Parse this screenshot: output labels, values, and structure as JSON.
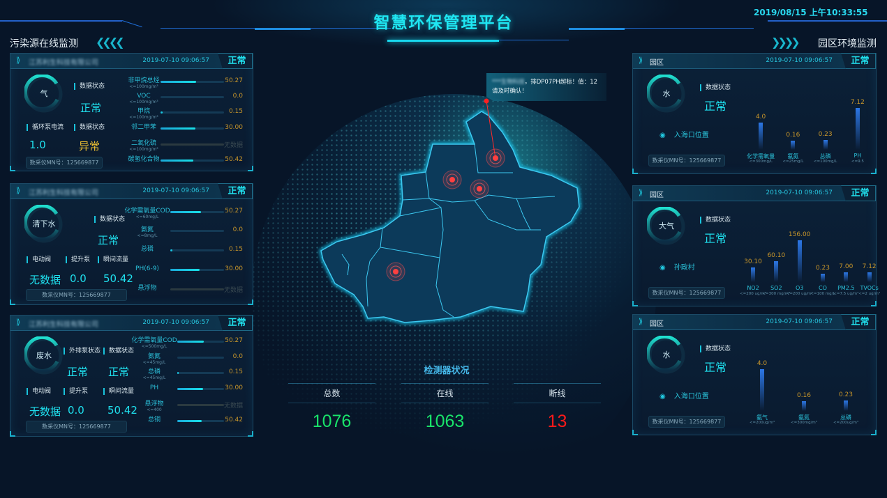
{
  "header": {
    "title": "智慧环保管理平台",
    "datetime": "2019/08/15 上午10:33:55"
  },
  "left_section": {
    "title": "污染源在线监测"
  },
  "right_section": {
    "title": "园区环境监测"
  },
  "colors": {
    "accent": "#1fe6f2",
    "value": "#c8962a",
    "warning": "#f0c232",
    "ok_count": "#19e36a",
    "offline_count": "#ff1a1a"
  },
  "left_panels": [
    {
      "company": "江苏利生科技有限公司",
      "time": "2019-07-10  09:06:57",
      "status": "正常",
      "gauge_label": "气",
      "kv": [
        {
          "label": "数据状态",
          "value": "正常"
        },
        {
          "label": "循环泵电流",
          "value": "1.0"
        },
        {
          "label": "数据状态",
          "value": "异常",
          "tone": "warning"
        }
      ],
      "mn": "数采仪MN号：125669877",
      "metrics": [
        {
          "name": "非甲烷总烃",
          "limit": "<=100mg/m³",
          "value": "50.27",
          "fill": 0.56
        },
        {
          "name": "VOC",
          "limit": "<=100mg/m³",
          "value": "0.0",
          "fill": 0
        },
        {
          "name": "甲烷",
          "limit": "<=100mg/m³",
          "value": "0.15",
          "fill": 0.03
        },
        {
          "name": "邻二甲苯",
          "limit": "",
          "value": "30.00",
          "fill": 0.55
        },
        {
          "name": "二氧化硫",
          "limit": "<=100mg/m³",
          "value": "无数据",
          "fill": null
        },
        {
          "name": "碳氢化合物",
          "limit": "",
          "value": "50.42",
          "fill": 0.52
        }
      ]
    },
    {
      "company": "江苏利生科技有限公司",
      "time": "2019-07-10  09:06:57",
      "status": "正常",
      "gauge_label": "清下水",
      "kv": [
        {
          "label": "数据状态",
          "value": "正常"
        },
        {
          "label": "电动阀",
          "value": "无数据"
        },
        {
          "label": "提升泵",
          "value": "0.0"
        },
        {
          "label": "瞬间流量",
          "value": "50.42"
        }
      ],
      "mn": "数采仪MN号：125669877",
      "metrics": [
        {
          "name": "化学需氧量COD",
          "limit": "<=60mg/L",
          "value": "50.27",
          "fill": 0.57
        },
        {
          "name": "氨氮",
          "limit": "<=8mg/L",
          "value": "0.0",
          "fill": 0
        },
        {
          "name": "总磷",
          "limit": "",
          "value": "0.15",
          "fill": 0.04
        },
        {
          "name": "PH(6-9)",
          "limit": "",
          "value": "30.00",
          "fill": 0.55
        },
        {
          "name": "悬浮物",
          "limit": "",
          "value": "无数据",
          "fill": null
        }
      ]
    },
    {
      "company": "江苏利生科技有限公司",
      "time": "2019-07-10  09:06:57",
      "status": "正常",
      "gauge_label": "废水",
      "kv": [
        {
          "label": "外排泵状态",
          "value": "正常"
        },
        {
          "label": "数据状态",
          "value": "正常"
        },
        {
          "label": "电动阀",
          "value": "无数据"
        },
        {
          "label": "提升泵",
          "value": "0.0"
        },
        {
          "label": "瞬间流量",
          "value": "50.42"
        }
      ],
      "mn": "数采仪MN号：125669877",
      "metrics": [
        {
          "name": "化学需氧量COD",
          "limit": "<=500mg/L",
          "value": "50.27",
          "fill": 0.57
        },
        {
          "name": "氨氮",
          "limit": "<=45mg/L",
          "value": "0.0",
          "fill": 0
        },
        {
          "name": "总磷",
          "limit": "<=45mg/L",
          "value": "0.15",
          "fill": 0.03
        },
        {
          "name": "PH",
          "limit": "",
          "value": "30.00",
          "fill": 0.55
        },
        {
          "name": "悬浮物",
          "limit": "<=400",
          "value": "无数据",
          "fill": null
        },
        {
          "name": "总铜",
          "limit": "",
          "value": "50.42",
          "fill": 0.52
        }
      ]
    }
  ],
  "right_panels": [
    {
      "title": "园区",
      "time": "2019-07-10  09:06:57",
      "status": "正常",
      "gauge_label": "水",
      "kv_label": "数据状态",
      "kv_value": "正常",
      "location": "入海口位置",
      "mn": "数采仪MN号：125669877",
      "bars": [
        {
          "name": "化学需氧量",
          "limit": "<=300mg/L",
          "value": 4.0,
          "label": "4.0"
        },
        {
          "name": "氨氮",
          "limit": "<=25mg/L",
          "value": 0.16,
          "label": "0.16"
        },
        {
          "name": "总磷",
          "limit": "<=100mg/L",
          "value": 0.23,
          "label": "0.23"
        },
        {
          "name": "PH",
          "limit": "<=9.5",
          "value": 7.12,
          "label": "7.12"
        }
      ]
    },
    {
      "title": "园区",
      "time": "2019-07-10  09:06:57",
      "status": "正常",
      "gauge_label": "大气",
      "kv_label": "数据状态",
      "kv_value": "正常",
      "location": "孙政村",
      "mn": "数采仪MN号：125669877",
      "bars": [
        {
          "name": "NO2",
          "limit": "<=200 ug/m³",
          "value": 30.1,
          "label": "30.10"
        },
        {
          "name": "SO2",
          "limit": "<=300 mg/m³",
          "value": 60.1,
          "label": "60.10"
        },
        {
          "name": "O3",
          "limit": "<=200 ug/m³",
          "value": 156.0,
          "label": "156.00"
        },
        {
          "name": "CO",
          "limit": "<=100 mg/L",
          "value": 0.23,
          "label": "0.23"
        },
        {
          "name": "PM2.5",
          "limit": "<=7.5 ug/m³",
          "value": 7.0,
          "label": "7.00"
        },
        {
          "name": "TVOCs",
          "limit": "<=2 ug/m³",
          "value": 7.12,
          "label": "7.12"
        }
      ]
    },
    {
      "title": "园区",
      "time": "2019-07-10  09:06:57",
      "status": "正常",
      "gauge_label": "水",
      "kv_label": "数据状态",
      "kv_value": "正常",
      "location": "入海口位置",
      "mn": "数采仪MN号：125669877",
      "bars": [
        {
          "name": "氨气",
          "limit": "<=200ug/m³",
          "value": 4.0,
          "label": "4.0"
        },
        {
          "name": "氨氮",
          "limit": "<=300mg/m³",
          "value": 0.16,
          "label": "0.16"
        },
        {
          "name": "总磷",
          "limit": "<=200ug/m³",
          "value": 0.23,
          "label": "0.23"
        }
      ]
    }
  ],
  "alert": {
    "source": "***生物科技",
    "message": "，排DP07PH超标！值：12",
    "message2": "请及时确认！"
  },
  "detector": {
    "title": "检测器状况",
    "total_label": "总数",
    "total": "1076",
    "online_label": "在线",
    "online": "1063",
    "offline_label": "断线",
    "offline": "13"
  }
}
